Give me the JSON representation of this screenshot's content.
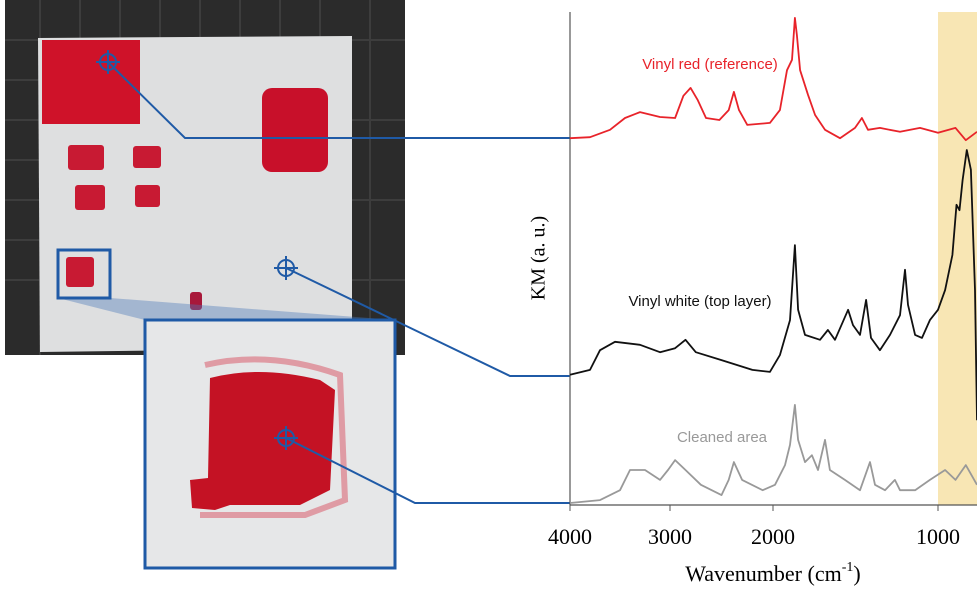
{
  "chart_data": {
    "type": "line",
    "y_label": "KM (a. u.)",
    "x_label": {
      "text": "Wavenumber (cm",
      "sup": "-1",
      "end": ")"
    },
    "xlim": [
      4000,
      770
    ],
    "xticks": [
      4000,
      3000,
      2000,
      1000
    ],
    "ylim": [
      0,
      100
    ],
    "highlight": {
      "from": 1000,
      "to": 770,
      "color": "#f8e6b4"
    },
    "series": [
      {
        "name": "Vinyl red (reference)",
        "color": "#e8232a",
        "x": [
          4000,
          3800,
          3600,
          3450,
          3300,
          3100,
          2950,
          2870,
          2800,
          2730,
          2650,
          2520,
          2430,
          2380,
          2330,
          2250,
          2030,
          1958,
          1915,
          1885,
          1867,
          1855,
          1836,
          1788,
          1745,
          1685,
          1594,
          1503,
          1461,
          1424,
          1352,
          1230,
          1109,
          1000,
          897,
          836,
          770
        ],
        "values": [
          74.4,
          74.6,
          76.1,
          78.5,
          79.7,
          78.7,
          78.5,
          83.0,
          84.6,
          82.1,
          78.5,
          78.1,
          80.1,
          83.8,
          80.1,
          77.1,
          77.5,
          80.1,
          88.2,
          90.3,
          98.8,
          95.3,
          88.2,
          83.2,
          79.1,
          76.1,
          74.4,
          76.5,
          78.5,
          76.1,
          76.5,
          75.7,
          76.5,
          75.5,
          76.5,
          74.0,
          75.7
        ]
      },
      {
        "name": "Vinyl white (top layer)",
        "color": "#111111",
        "x": [
          4000,
          3800,
          3700,
          3550,
          3300,
          3100,
          2950,
          2850,
          2750,
          2500,
          2200,
          2030,
          1958,
          1897,
          1867,
          1848,
          1806,
          1715,
          1667,
          1624,
          1545,
          1515,
          1473,
          1436,
          1406,
          1352,
          1291,
          1230,
          1200,
          1182,
          1139,
          1097,
          1049,
          1000,
          958,
          915,
          891,
          873,
          855,
          830,
          806,
          782,
          770
        ],
        "values": [
          26.4,
          27.4,
          31.4,
          33.1,
          32.5,
          31.0,
          31.8,
          33.5,
          31.0,
          29.4,
          27.4,
          27.0,
          30.4,
          37.5,
          52.7,
          39.6,
          34.5,
          33.5,
          35.5,
          33.5,
          39.6,
          36.5,
          34.5,
          41.6,
          33.9,
          31.4,
          34.5,
          38.5,
          47.7,
          40.6,
          34.5,
          33.9,
          37.5,
          39.6,
          43.6,
          50.7,
          60.9,
          59.8,
          65.9,
          72.0,
          68.0,
          43.6,
          17.2
        ]
      },
      {
        "name": "Cleaned area",
        "color": "#999999",
        "x": [
          4000,
          3700,
          3500,
          3400,
          3250,
          3100,
          3020,
          2950,
          2850,
          2700,
          2500,
          2430,
          2380,
          2300,
          2100,
          1988,
          1927,
          1897,
          1867,
          1848,
          1806,
          1764,
          1727,
          1685,
          1655,
          1564,
          1473,
          1412,
          1382,
          1321,
          1261,
          1230,
          1139,
          1049,
          958,
          897,
          836,
          770
        ],
        "values": [
          0.4,
          1.0,
          3.0,
          7.1,
          7.1,
          5.1,
          7.1,
          9.1,
          7.1,
          4.1,
          2.0,
          5.1,
          8.7,
          5.1,
          3.0,
          4.1,
          8.1,
          12.2,
          20.3,
          13.2,
          8.7,
          10.1,
          7.1,
          13.2,
          7.1,
          5.1,
          3.0,
          8.7,
          4.1,
          3.0,
          5.1,
          3.0,
          3.0,
          5.1,
          7.1,
          5.1,
          8.1,
          4.1
        ]
      }
    ]
  }
}
